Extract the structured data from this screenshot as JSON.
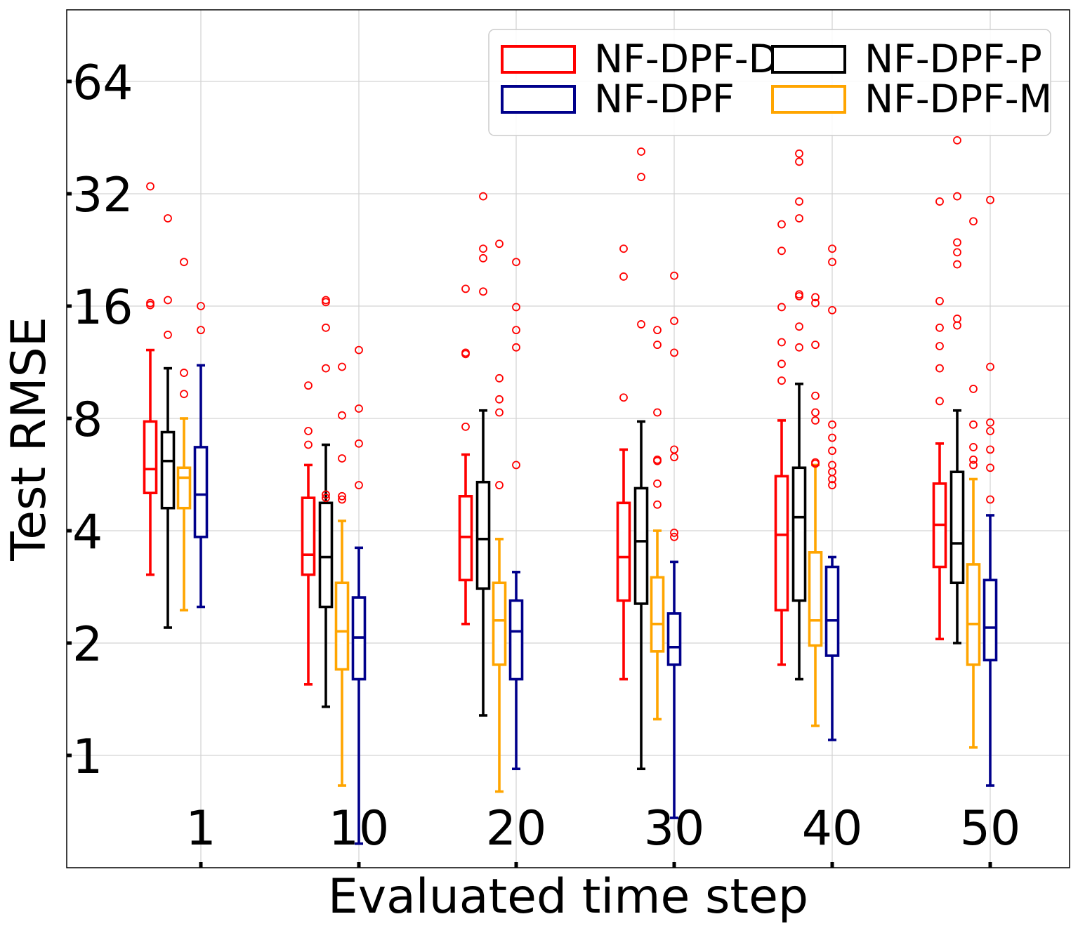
{
  "chart_data": {
    "type": "box",
    "title": "",
    "xlabel": "Evaluated time step",
    "ylabel": "Test RMSE",
    "y_scale": "log2",
    "ylim": [
      0.6,
      100
    ],
    "y_ticks": [
      1,
      2,
      4,
      8,
      16,
      32,
      64
    ],
    "y_tick_labels": [
      "1",
      "2",
      "4",
      "8",
      "16",
      "32",
      "64"
    ],
    "categories": [
      "1",
      "10",
      "20",
      "30",
      "40",
      "50"
    ],
    "grid": true,
    "legend_position": "top-right",
    "legend_order": [
      "NF-DPF-D",
      "NF-DPF-P",
      "NF-DPF",
      "NF-DPF-M"
    ],
    "outlier_color": "#ff0000",
    "series": [
      {
        "name": "NF-DPF-D",
        "color": "#ff0000",
        "boxes": [
          {
            "lw": 3.05,
            "q1": 5.05,
            "med": 5.85,
            "q3": 7.85,
            "uw": 12.2,
            "outliers": [
              33.5,
              16.3,
              16.1
            ]
          },
          {
            "lw": 1.55,
            "q1": 3.05,
            "med": 3.45,
            "q3": 4.9,
            "uw": 6.0,
            "outliers": [
              9.8,
              7.4,
              6.8
            ]
          },
          {
            "lw": 2.25,
            "q1": 2.95,
            "med": 3.85,
            "q3": 4.95,
            "uw": 6.4,
            "outliers": [
              17.8,
              12.0,
              11.9,
              7.6
            ]
          },
          {
            "lw": 1.6,
            "q1": 2.6,
            "med": 3.4,
            "q3": 4.75,
            "uw": 6.6,
            "outliers": [
              22.8,
              19.2,
              9.1
            ]
          },
          {
            "lw": 1.75,
            "q1": 2.45,
            "med": 3.9,
            "q3": 5.6,
            "uw": 7.9,
            "outliers": [
              26.5,
              22.5,
              15.9,
              12.8,
              11.2,
              10.1
            ]
          },
          {
            "lw": 2.05,
            "q1": 3.2,
            "med": 4.15,
            "q3": 5.35,
            "uw": 6.85,
            "outliers": [
              30.5,
              16.5,
              14.0,
              12.5,
              10.9,
              8.9
            ]
          }
        ]
      },
      {
        "name": "NF-DPF-P",
        "color": "#000000",
        "boxes": [
          {
            "lw": 2.2,
            "q1": 4.6,
            "med": 6.15,
            "q3": 7.35,
            "uw": 10.9,
            "outliers": [
              27.5,
              16.6,
              13.4
            ]
          },
          {
            "lw": 1.35,
            "q1": 2.5,
            "med": 3.4,
            "q3": 4.75,
            "uw": 6.8,
            "outliers": [
              16.6,
              16.4,
              14.0,
              10.9,
              5.0,
              4.9
            ]
          },
          {
            "lw": 1.28,
            "q1": 2.8,
            "med": 3.8,
            "q3": 5.4,
            "uw": 8.4,
            "outliers": [
              31.5,
              22.8,
              21.5,
              17.5
            ]
          },
          {
            "lw": 0.92,
            "q1": 2.55,
            "med": 3.75,
            "q3": 5.2,
            "uw": 7.85,
            "outliers": [
              41.5,
              35.5,
              14.3
            ]
          },
          {
            "lw": 1.6,
            "q1": 2.6,
            "med": 4.35,
            "q3": 5.9,
            "uw": 9.9,
            "outliers": [
              41.0,
              39.0,
              30.5,
              27.5,
              17.2,
              17.0,
              14.1,
              12.4
            ]
          },
          {
            "lw": 2.0,
            "q1": 2.9,
            "med": 3.7,
            "q3": 5.75,
            "uw": 8.4,
            "outliers": [
              44.5,
              31.5,
              23.7,
              22.3,
              20.7,
              14.8,
              14.2
            ]
          }
        ]
      },
      {
        "name": "NF-DPF-M",
        "color": "#ffa500",
        "boxes": [
          {
            "lw": 2.45,
            "q1": 4.6,
            "med": 5.55,
            "q3": 5.9,
            "uw": 8.0,
            "outliers": [
              21.0,
              10.6,
              9.3
            ]
          },
          {
            "lw": 0.83,
            "q1": 1.7,
            "med": 2.15,
            "q3": 2.9,
            "uw": 4.25,
            "outliers": [
              11.0,
              8.15,
              6.25,
              4.95,
              4.85
            ]
          },
          {
            "lw": 0.8,
            "q1": 1.75,
            "med": 2.3,
            "q3": 2.9,
            "uw": 3.8,
            "outliers": [
              23.5,
              10.25,
              9.0,
              8.3,
              5.3
            ]
          },
          {
            "lw": 1.25,
            "q1": 1.9,
            "med": 2.25,
            "q3": 3.0,
            "uw": 4.0,
            "outliers": [
              13.8,
              12.6,
              8.3,
              6.2,
              6.15,
              5.35,
              4.7
            ]
          },
          {
            "lw": 1.2,
            "q1": 1.97,
            "med": 2.3,
            "q3": 3.5,
            "uw": 6.0,
            "outliers": [
              16.9,
              16.3,
              12.6,
              9.2,
              8.3,
              7.9,
              6.1,
              6.05
            ]
          },
          {
            "lw": 1.05,
            "q1": 1.75,
            "med": 2.25,
            "q3": 3.25,
            "uw": 5.5,
            "outliers": [
              27.0,
              9.6,
              7.7,
              6.7,
              6.2,
              6.0
            ]
          }
        ]
      },
      {
        "name": "NF-DPF",
        "color": "#00008b",
        "boxes": [
          {
            "lw": 2.5,
            "q1": 3.85,
            "med": 5.0,
            "q3": 6.7,
            "uw": 11.1,
            "outliers": [
              16.0,
              13.8
            ]
          },
          {
            "lw": 0.58,
            "q1": 1.6,
            "med": 2.07,
            "q3": 2.65,
            "uw": 3.6,
            "outliers": [
              12.2,
              8.5,
              6.85,
              5.3
            ]
          },
          {
            "lw": 0.92,
            "q1": 1.6,
            "med": 2.15,
            "q3": 2.6,
            "uw": 3.1,
            "outliers": [
              21.0,
              15.9,
              13.8,
              12.4,
              6.0
            ]
          },
          {
            "lw": 0.68,
            "q1": 1.75,
            "med": 1.95,
            "q3": 2.4,
            "uw": 3.3,
            "outliers": [
              19.3,
              14.6,
              12.0,
              6.6,
              6.3,
              3.95,
              3.85
            ]
          },
          {
            "lw": 1.1,
            "q1": 1.85,
            "med": 2.3,
            "q3": 3.2,
            "uw": 3.4,
            "outliers": [
              22.8,
              21.0,
              15.6,
              7.7,
              7.1,
              6.55,
              6.0,
              5.75,
              5.5,
              5.3
            ]
          },
          {
            "lw": 0.83,
            "q1": 1.8,
            "med": 2.2,
            "q3": 2.95,
            "uw": 4.4,
            "outliers": [
              30.8,
              11.0,
              7.8,
              7.4,
              6.6,
              5.9,
              4.85
            ]
          }
        ]
      }
    ]
  }
}
